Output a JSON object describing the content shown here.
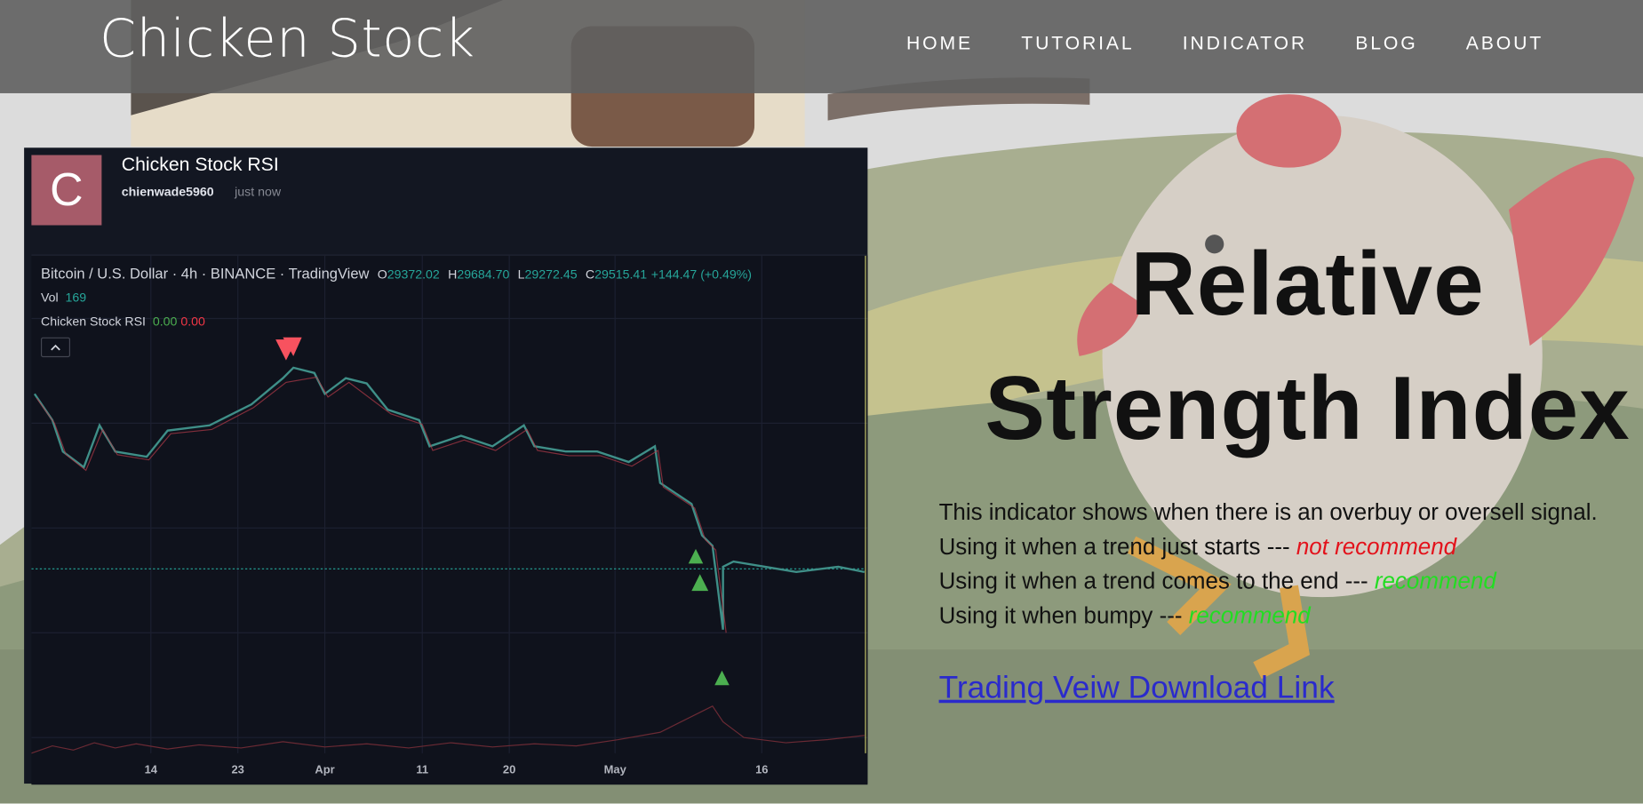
{
  "header": {
    "brand": "Chicken Stock",
    "nav": [
      "HOME",
      "TUTORIAL",
      "INDICATOR",
      "BLOG",
      "ABOUT"
    ]
  },
  "widget": {
    "avatar": "C",
    "title": "Chicken Stock RSI",
    "author": "chienwade5960",
    "time": "just now",
    "symbol": "Bitcoin / U.S. Dollar · 4h · BINANCE · TradingView",
    "ohlc": [
      {
        "label": "O",
        "value": "29372.02"
      },
      {
        "label": "H",
        "value": "29684.70"
      },
      {
        "label": "L",
        "value": "29272.45"
      },
      {
        "label": "C",
        "value": "29515.41"
      }
    ],
    "change": "+144.47 (+0.49%)",
    "volume": {
      "label": "Vol",
      "value": "169"
    },
    "indicator": {
      "name": "Chicken Stock RSI",
      "values": [
        "0.00",
        "0.00"
      ]
    },
    "x_labels": [
      "14",
      "23",
      "Apr",
      "11",
      "20",
      "May",
      "16"
    ]
  },
  "article": {
    "title": "Relative Strength Index",
    "description": "This indicator shows when there is an overbuy or oversell signal.",
    "usage": [
      {
        "text": "Using it when a trend just starts ---",
        "verdict": "not recommend"
      },
      {
        "text": "Using it when a trend comes to the end ---",
        "verdict": "recommend"
      },
      {
        "text": "Using it when bumpy ---",
        "verdict": "recommend"
      }
    ],
    "link": "Trading Veiw Download Link"
  }
}
